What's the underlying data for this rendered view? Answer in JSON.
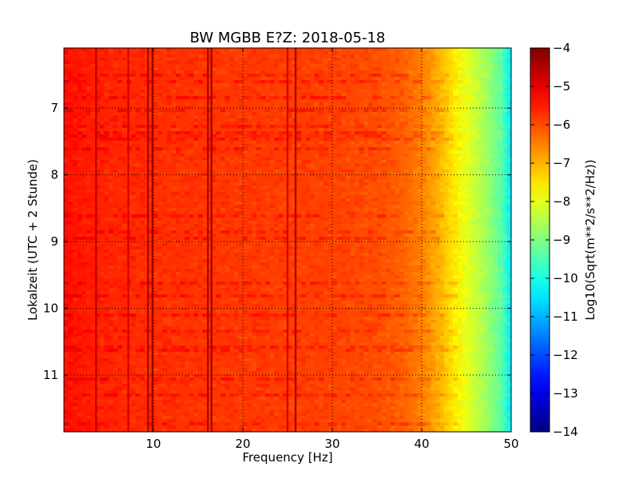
{
  "chart_data": {
    "type": "heatmap",
    "title": "BW MGBB E?Z: 2018-05-18",
    "xlabel": "Frequency [Hz]",
    "ylabel": "Lokalzeit (UTC + 2 Stunde)",
    "xlim": [
      0,
      50
    ],
    "ylim": [
      6.1,
      11.85
    ],
    "y_inverted": true,
    "x_ticks": [
      10,
      20,
      30,
      40,
      50
    ],
    "x_tick_labels": [
      "10",
      "20",
      "30",
      "40",
      "50"
    ],
    "y_ticks": [
      7,
      8,
      9,
      10,
      11
    ],
    "y_tick_labels": [
      "7",
      "8",
      "9",
      "10",
      "11"
    ],
    "grid": true,
    "colormap": "jet",
    "colorbar": {
      "label": "Log10(Sqrt(m**2/s**2/Hz))",
      "range": [
        -14,
        -4
      ],
      "ticks": [
        -4,
        -5,
        -6,
        -7,
        -8,
        -9,
        -10,
        -11,
        -12,
        -13,
        -14
      ],
      "tick_labels": [
        "−4",
        "−5",
        "−6",
        "−7",
        "−8",
        "−9",
        "−10",
        "−11",
        "−12",
        "−13",
        "−14"
      ]
    },
    "spectral_profile": {
      "frequency_hz": [
        0,
        5,
        10,
        15,
        20,
        25,
        30,
        35,
        38,
        40,
        42,
        43.5,
        45,
        47,
        49,
        50
      ],
      "value": [
        -5.4,
        -5.6,
        -5.7,
        -5.75,
        -5.8,
        -5.85,
        -5.9,
        -6.0,
        -6.2,
        -6.5,
        -7.0,
        -7.5,
        -8.0,
        -8.6,
        -9.4,
        -10.5
      ]
    },
    "tonal_lines": [
      {
        "frequency_hz": 3.6,
        "value": -4.6
      },
      {
        "frequency_hz": 7.2,
        "value": -4.8
      },
      {
        "frequency_hz": 9.4,
        "value": -4.4
      },
      {
        "frequency_hz": 9.9,
        "value": -4.2
      },
      {
        "frequency_hz": 16.1,
        "value": -4.4
      },
      {
        "frequency_hz": 16.5,
        "value": -4.3
      },
      {
        "frequency_hz": 25.0,
        "value": -4.8
      },
      {
        "frequency_hz": 25.9,
        "value": -4.4
      }
    ]
  }
}
